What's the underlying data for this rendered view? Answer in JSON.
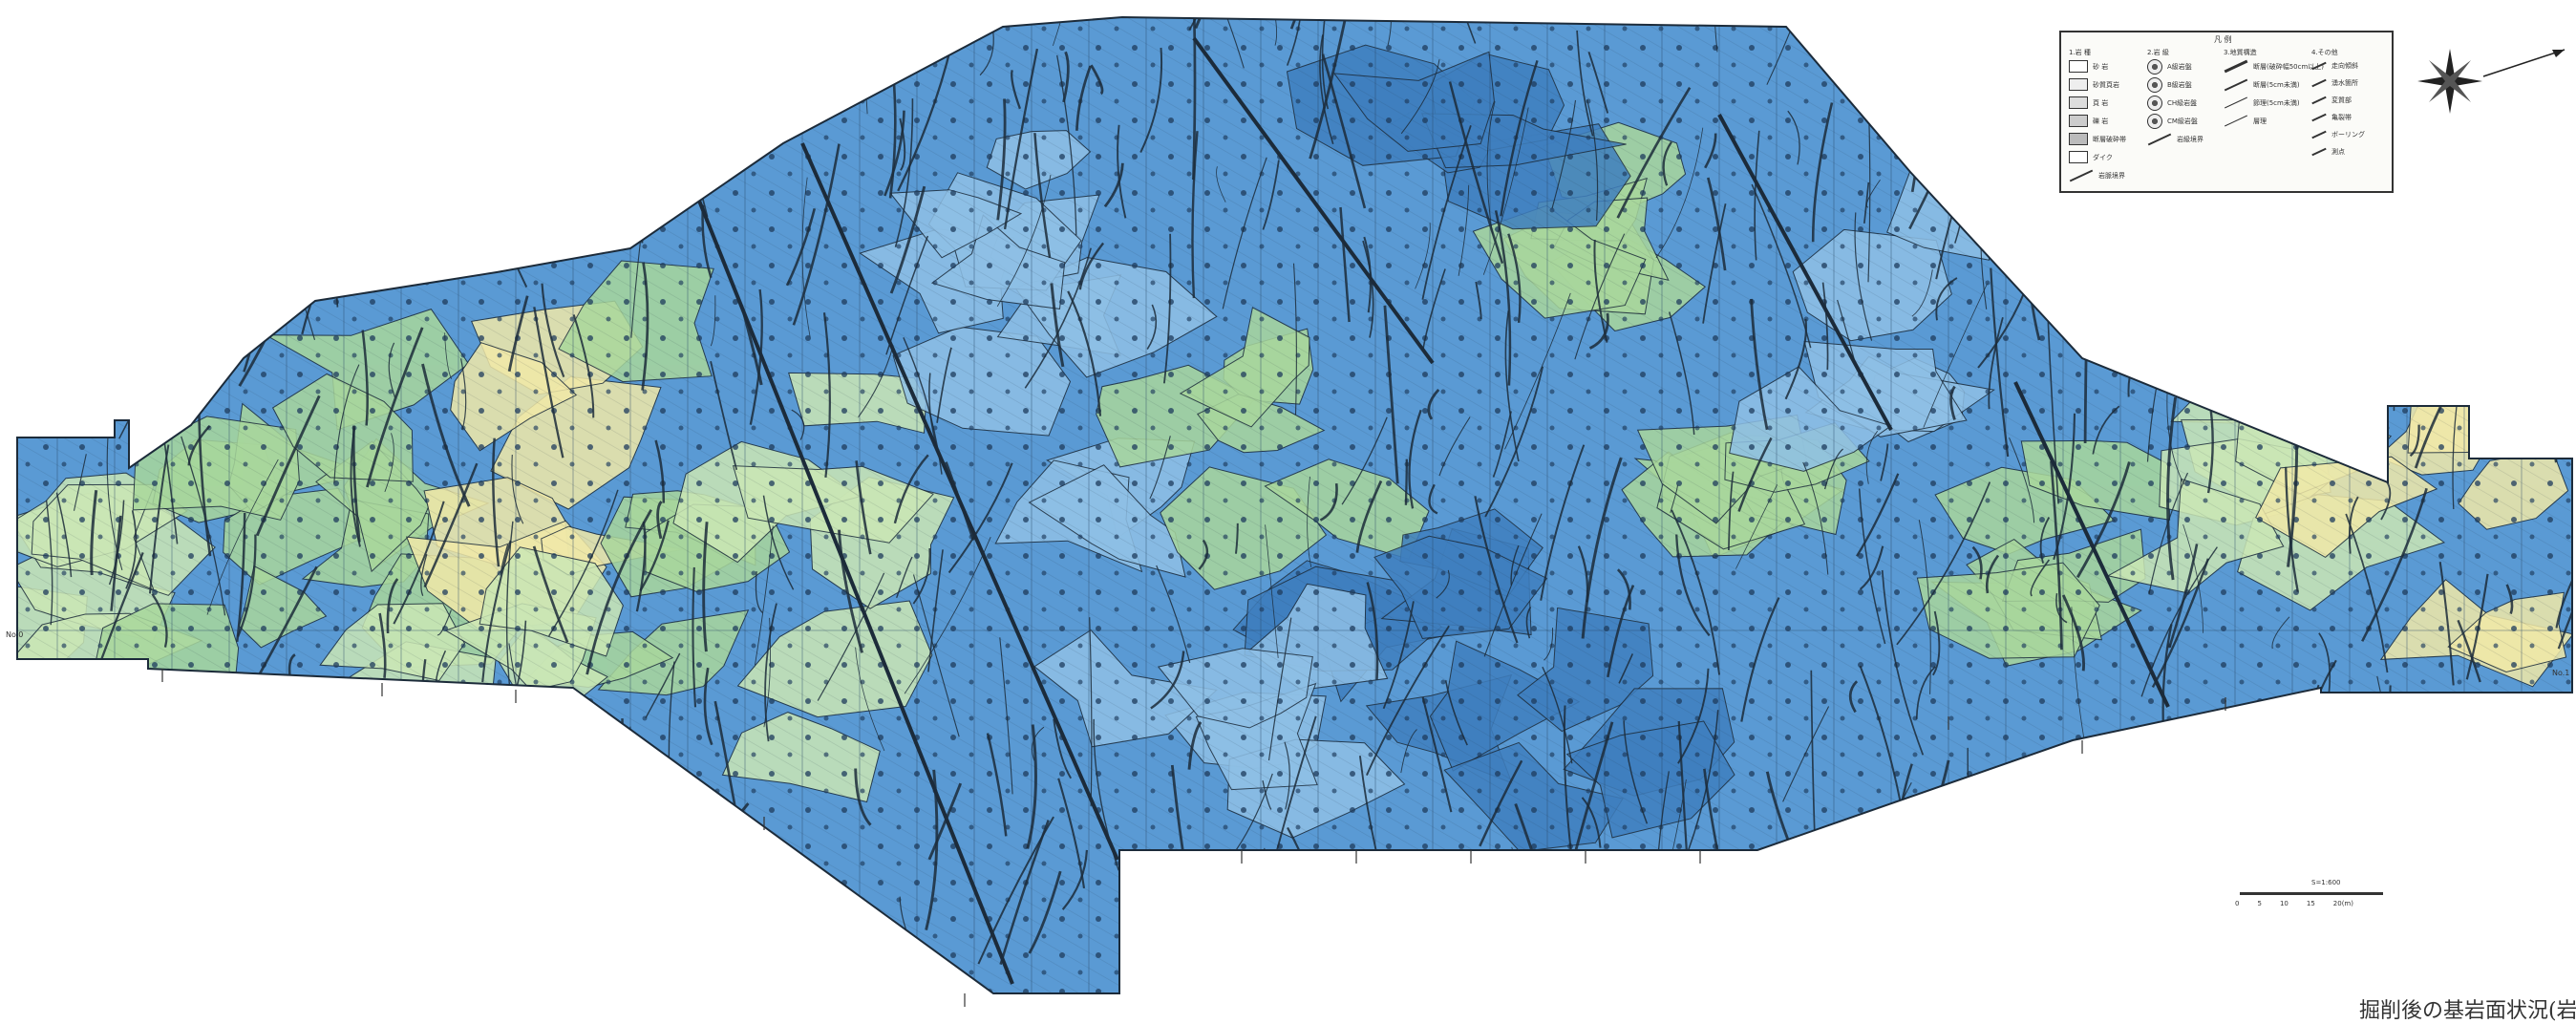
{
  "map": {
    "colors": {
      "blue_main": "#5a9ad4",
      "blue_dark": "#3f7fbf",
      "blue_light": "#8fc0e6",
      "green": "#a9d79c",
      "pale_green": "#cbe7b5",
      "yellow": "#f1e9a8",
      "line": "#1c2b3a"
    }
  },
  "legend": {
    "title": "凡 例",
    "col1_header": "1.岩 種",
    "col2_header": "2.岩 級",
    "col3_header": "3.地質構造",
    "col4_header": "4.その他",
    "col1_items": [
      "砂 岩",
      "砂質頁岩",
      "頁 岩",
      "礫 岩",
      "断層破砕帯",
      "ダイク",
      "岩脈境界"
    ],
    "col2_items": [
      "A級岩盤",
      "B級岩盤",
      "CH級岩盤",
      "CM級岩盤",
      "岩級境界"
    ],
    "col3_items": [
      "断層(破砕幅50cm以上)",
      "断層(5cm未満)",
      "節理(5cm未満)",
      "層理"
    ],
    "col4_items": [
      "走向傾斜",
      "湧水箇所",
      "変質部",
      "亀裂帯",
      "ボーリング",
      "測点"
    ]
  },
  "scale": {
    "label": "S=1:600",
    "ticks": [
      "0",
      "5",
      "10",
      "15",
      "20(m)"
    ]
  },
  "caption": "掘削後の基岩面状況(岩盤",
  "side_labels": {
    "left": "No.0",
    "right": "No.1"
  }
}
